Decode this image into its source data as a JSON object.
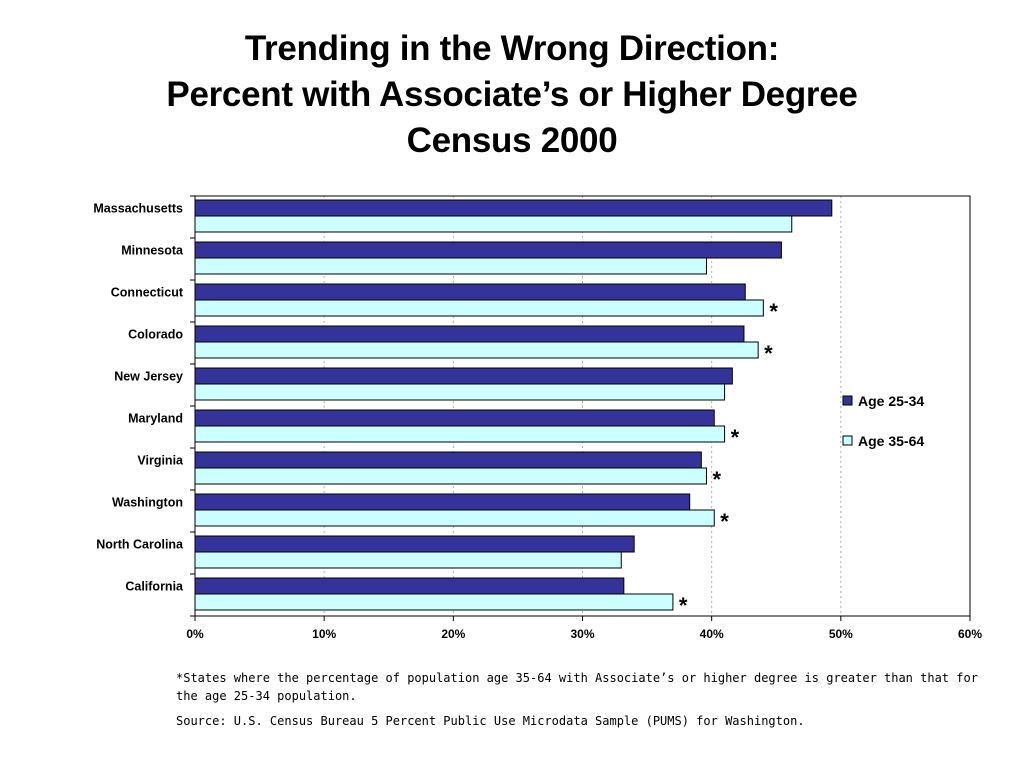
{
  "title_lines": [
    "Trending in the Wrong Direction:",
    "Percent with Associate’s or Higher Degree",
    "Census 2000"
  ],
  "footnote": "*States where the percentage of population age 35-64 with Associate’s or higher degree is greater than that for the age 25-34 population.",
  "source": "Source: U.S. Census Bureau 5 Percent Public Use Microdata Sample (PUMS) for Washington.",
  "chart_data": {
    "type": "bar",
    "orientation": "horizontal",
    "categories": [
      "Massachusetts",
      "Minnesota",
      "Connecticut",
      "Colorado",
      "New Jersey",
      "Maryland",
      "Virginia",
      "Washington",
      "North Carolina",
      "California"
    ],
    "series": [
      {
        "name": "Age 25-34",
        "color": "#333399",
        "values": [
          0.493,
          0.454,
          0.426,
          0.425,
          0.416,
          0.402,
          0.392,
          0.383,
          0.34,
          0.332
        ]
      },
      {
        "name": "Age 35-64",
        "color": "#ccffff",
        "values": [
          0.462,
          0.396,
          0.44,
          0.436,
          0.41,
          0.41,
          0.396,
          0.402,
          0.33,
          0.37
        ]
      }
    ],
    "marked_with_asterisk": [
      false,
      false,
      true,
      true,
      false,
      true,
      true,
      true,
      false,
      true
    ],
    "marker_symbol": "*",
    "x_ticks": [
      "0%",
      "10%",
      "20%",
      "30%",
      "40%",
      "50%",
      "60%"
    ],
    "xlim": [
      0,
      0.6
    ],
    "gridlines": "vertical dotted",
    "legend_position": "right"
  }
}
